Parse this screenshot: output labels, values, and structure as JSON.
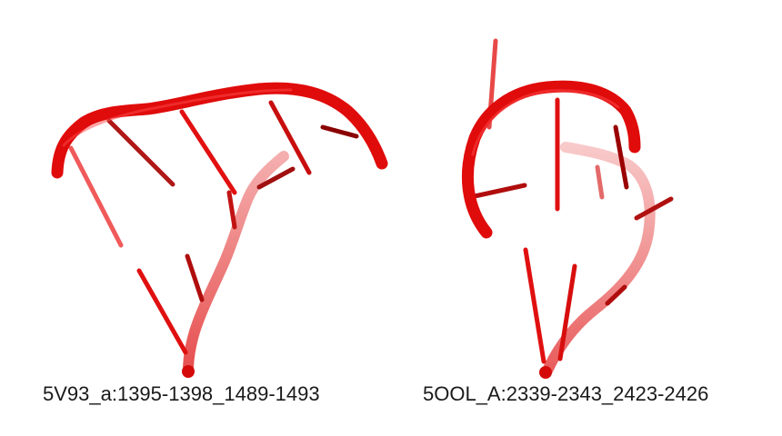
{
  "panels": [
    {
      "label": "5V93_a:1395-1398_1489-1493"
    },
    {
      "label": "5OOL_A:2339-2343_2423-2426"
    }
  ],
  "colors": {
    "backbone": "#e00b0b",
    "backbone_dark": "#a80000",
    "backbone_light": "#f08a8a",
    "stick": "#e51010",
    "stick_dark": "#8c0000",
    "stick_light": "#f06262"
  }
}
